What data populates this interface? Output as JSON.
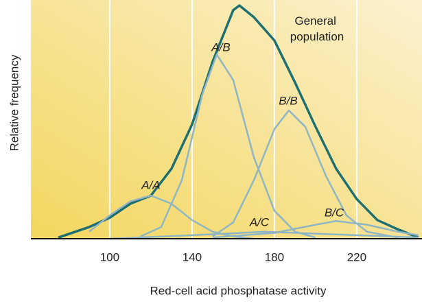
{
  "chart_data": {
    "type": "line",
    "x_label": "Red-cell acid phosphatase activity",
    "y_label": "Relative frequency",
    "xlim": [
      61.7,
      251.7
    ],
    "ylim": [
      0,
      100
    ],
    "xticks": [
      100,
      140,
      180,
      220
    ],
    "grid": true,
    "series": [
      {
        "name": "General population",
        "color": "#1f6f70",
        "x": [
          75,
          90,
          100,
          110,
          120,
          130,
          140,
          150,
          160,
          163,
          170,
          180,
          190,
          200,
          210,
          220,
          230,
          240,
          250
        ],
        "values": [
          0.5,
          5,
          9,
          15,
          18.5,
          30,
          49,
          76,
          98,
          100,
          95,
          85,
          67,
          48,
          30,
          17,
          8,
          4,
          0.5
        ]
      },
      {
        "name": "A/A",
        "color": "#8fb6c4",
        "x": [
          90,
          100,
          110,
          120,
          130,
          140,
          150,
          160,
          170
        ],
        "values": [
          3,
          10,
          16,
          18.5,
          15,
          8,
          3,
          1,
          0
        ]
      },
      {
        "name": "A/B",
        "color": "#8fb6c4",
        "x": [
          115,
          125,
          135,
          145,
          152,
          160,
          170,
          180,
          190,
          200
        ],
        "values": [
          1,
          5,
          25,
          62,
          79,
          68,
          35,
          12,
          3,
          0.5
        ]
      },
      {
        "name": "B/B",
        "color": "#8fb6c4",
        "x": [
          150,
          160,
          170,
          180,
          187,
          195,
          205,
          215,
          225,
          240
        ],
        "values": [
          1,
          7,
          25,
          47,
          55,
          48,
          27,
          10,
          3,
          0.5
        ]
      },
      {
        "name": "A/C",
        "color": "#8fb6c4",
        "x": [
          100,
          140,
          175,
          220,
          250
        ],
        "values": [
          0,
          1.5,
          3,
          1.5,
          0.5
        ]
      },
      {
        "name": "B/C",
        "color": "#8fb6c4",
        "x": [
          150,
          180,
          200,
          210,
          225,
          240,
          250
        ],
        "values": [
          0.5,
          2.5,
          6,
          7.6,
          6,
          3,
          1.5
        ]
      }
    ]
  }
}
